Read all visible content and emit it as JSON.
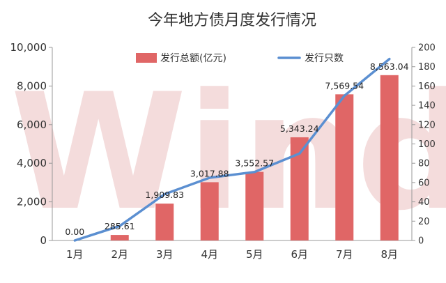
{
  "chart_data": {
    "type": "bar+line",
    "title": "今年地方债月度发行情况",
    "categories": [
      "1月",
      "2月",
      "3月",
      "4月",
      "5月",
      "6月",
      "7月",
      "8月"
    ],
    "series": [
      {
        "name": "发行总额(亿元)",
        "type": "bar",
        "axis": "left",
        "color": "#e06666",
        "values": [
          0.0,
          285.61,
          1909.83,
          3017.88,
          3552.57,
          5343.24,
          7569.54,
          8563.04
        ],
        "labels": [
          "0.00",
          "285.61",
          "1,909.83",
          "3,017.88",
          "3,552.57",
          "5,343.24",
          "7,569.54",
          "8,563.04"
        ]
      },
      {
        "name": "发行只数",
        "type": "line",
        "axis": "right",
        "color": "#5b8fd1",
        "values": [
          0,
          15,
          48,
          65,
          71,
          90,
          150,
          188
        ]
      }
    ],
    "y_left": {
      "ylim": [
        0,
        10000
      ],
      "ticks": [
        0,
        2000,
        4000,
        6000,
        8000,
        10000
      ],
      "tick_labels": [
        "0",
        "2,000",
        "4,000",
        "6,000",
        "8,000",
        "10,000"
      ]
    },
    "y_right": {
      "ylim": [
        0,
        200
      ],
      "ticks": [
        0,
        20,
        40,
        60,
        80,
        100,
        120,
        140,
        160,
        180,
        200
      ],
      "tick_labels": [
        "0",
        "20",
        "40",
        "60",
        "80",
        "100",
        "120",
        "140",
        "160",
        "180",
        "200"
      ]
    },
    "legend": "top-center",
    "grid": false,
    "watermark": "Wind"
  }
}
